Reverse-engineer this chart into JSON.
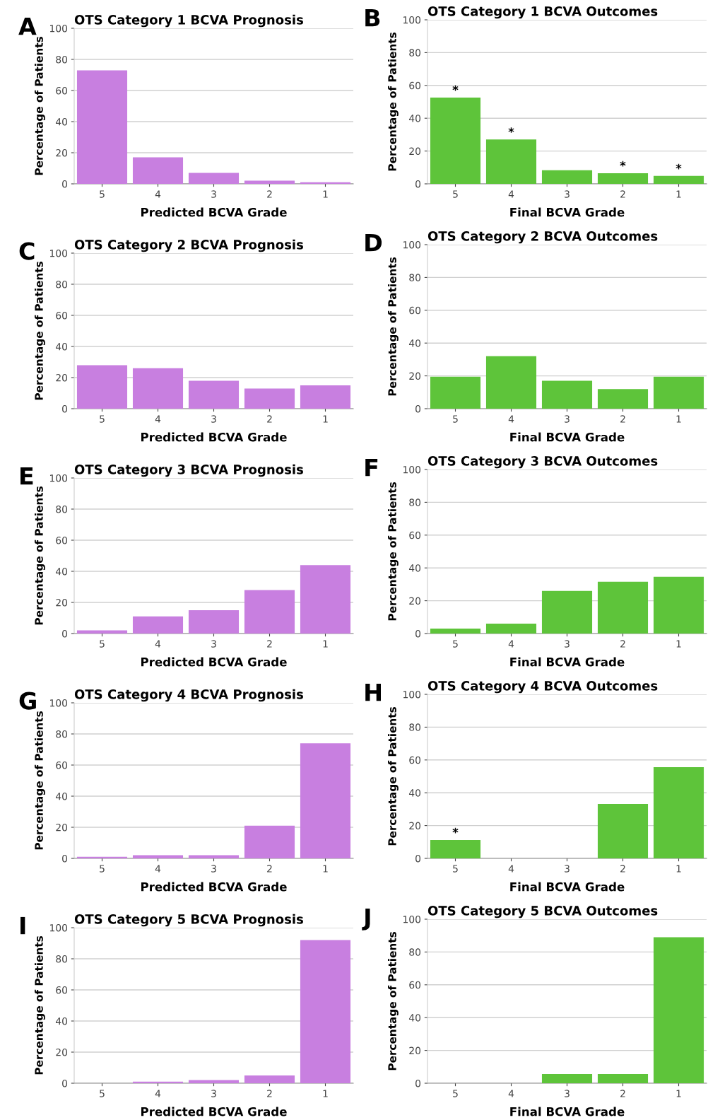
{
  "chart_data": [
    {
      "type": "bar",
      "title": "OTS Category 1 BCVA Prognosis",
      "xlabel": "Predicted BCVA Grade",
      "ylabel": "Percentage of Patients",
      "categories": [
        "5",
        "4",
        "3",
        "2",
        "1"
      ],
      "values": [
        73,
        17,
        7,
        2,
        1
      ],
      "color": "#c87fe0",
      "ylim": [
        0,
        100
      ],
      "yticks": [
        0,
        20,
        40,
        60,
        80,
        100
      ],
      "grid": "y",
      "annotations": [
        "A"
      ]
    },
    {
      "type": "bar",
      "title": "OTS Category 1 BCVA Outcomes",
      "xlabel": "Final BCVA Grade",
      "ylabel": "Percentage of Patients",
      "categories": [
        "5",
        "4",
        "3",
        "2",
        "1"
      ],
      "values": [
        52.6,
        27,
        8.3,
        6.5,
        4.8
      ],
      "color": "#5ec43a",
      "ylim": [
        0,
        100
      ],
      "yticks": [
        0,
        20,
        40,
        60,
        80,
        100
      ],
      "grid": "y",
      "annotations": [
        "B",
        {
          "text": "*",
          "x": "5",
          "y": 52.6
        },
        {
          "text": "*",
          "x": "4",
          "y": 27
        },
        {
          "text": "*",
          "x": "2",
          "y": 6.5
        },
        {
          "text": "*",
          "x": "1",
          "y": 4.8
        }
      ]
    },
    {
      "type": "bar",
      "title": "OTS Category 2 BCVA Prognosis",
      "xlabel": "Predicted BCVA Grade",
      "ylabel": "Percentage of Patients",
      "categories": [
        "5",
        "4",
        "3",
        "2",
        "1"
      ],
      "values": [
        28,
        26,
        18,
        13,
        15
      ],
      "color": "#c87fe0",
      "ylim": [
        0,
        100
      ],
      "yticks": [
        0,
        20,
        40,
        60,
        80,
        100
      ],
      "grid": "y",
      "annotations": [
        "C"
      ]
    },
    {
      "type": "bar",
      "title": "OTS Category 2 BCVA Outcomes",
      "xlabel": "Final BCVA Grade",
      "ylabel": "Percentage of Patients",
      "categories": [
        "5",
        "4",
        "3",
        "2",
        "1"
      ],
      "values": [
        19.5,
        32,
        17,
        12,
        19.5
      ],
      "color": "#5ec43a",
      "ylim": [
        0,
        100
      ],
      "yticks": [
        0,
        20,
        40,
        60,
        80,
        100
      ],
      "grid": "y",
      "annotations": [
        "D"
      ]
    },
    {
      "type": "bar",
      "title": "OTS Category 3 BCVA Prognosis",
      "xlabel": "Predicted BCVA Grade",
      "ylabel": "Percentage of Patients",
      "categories": [
        "5",
        "4",
        "3",
        "2",
        "1"
      ],
      "values": [
        2,
        11,
        15,
        28,
        44
      ],
      "color": "#c87fe0",
      "ylim": [
        0,
        100
      ],
      "yticks": [
        0,
        20,
        40,
        60,
        80,
        100
      ],
      "grid": "y",
      "annotations": [
        "E"
      ]
    },
    {
      "type": "bar",
      "title": "OTS Category 3 BCVA Outcomes",
      "xlabel": "Final BCVA Grade",
      "ylabel": "Percentage of Patients",
      "categories": [
        "5",
        "4",
        "3",
        "2",
        "1"
      ],
      "values": [
        3,
        6,
        26,
        31.6,
        34.6
      ],
      "color": "#5ec43a",
      "ylim": [
        0,
        100
      ],
      "yticks": [
        0,
        20,
        40,
        60,
        80,
        100
      ],
      "grid": "y",
      "annotations": [
        "F"
      ]
    },
    {
      "type": "bar",
      "title": "OTS Category 4 BCVA Prognosis",
      "xlabel": "Predicted BCVA Grade",
      "ylabel": "Percentage of Patients",
      "categories": [
        "5",
        "4",
        "3",
        "2",
        "1"
      ],
      "values": [
        1,
        2,
        2,
        21,
        74
      ],
      "color": "#c87fe0",
      "ylim": [
        0,
        100
      ],
      "yticks": [
        0,
        20,
        40,
        60,
        80,
        100
      ],
      "grid": "y",
      "annotations": [
        "G"
      ]
    },
    {
      "type": "bar",
      "title": "OTS Category 4 BCVA Outcomes",
      "xlabel": "Final BCVA Grade",
      "ylabel": "Percentage of Patients",
      "categories": [
        "5",
        "4",
        "3",
        "2",
        "1"
      ],
      "values": [
        11.2,
        0,
        0,
        33.2,
        55.6
      ],
      "color": "#5ec43a",
      "ylim": [
        0,
        100
      ],
      "yticks": [
        0,
        20,
        40,
        60,
        80,
        100
      ],
      "grid": "y",
      "annotations": [
        "H",
        {
          "text": "*",
          "x": "5",
          "y": 11.2
        }
      ]
    },
    {
      "type": "bar",
      "title": "OTS Category 5 BCVA Prognosis",
      "xlabel": "Predicted BCVA Grade",
      "ylabel": "Percentage of Patients",
      "categories": [
        "5",
        "4",
        "3",
        "2",
        "1"
      ],
      "values": [
        0,
        1,
        2,
        5,
        92
      ],
      "color": "#c87fe0",
      "ylim": [
        0,
        100
      ],
      "yticks": [
        0,
        20,
        40,
        60,
        80,
        100
      ],
      "grid": "y",
      "annotations": [
        "I"
      ]
    },
    {
      "type": "bar",
      "title": "OTS Category 5 BCVA Outcomes",
      "xlabel": "Final BCVA Grade",
      "ylabel": "Percentage of Patients",
      "categories": [
        "5",
        "4",
        "3",
        "2",
        "1"
      ],
      "values": [
        0,
        0,
        5.6,
        5.6,
        89
      ],
      "color": "#5ec43a",
      "ylim": [
        0,
        100
      ],
      "yticks": [
        0,
        20,
        40,
        60,
        80,
        100
      ],
      "grid": "y",
      "annotations": [
        "J"
      ]
    }
  ]
}
